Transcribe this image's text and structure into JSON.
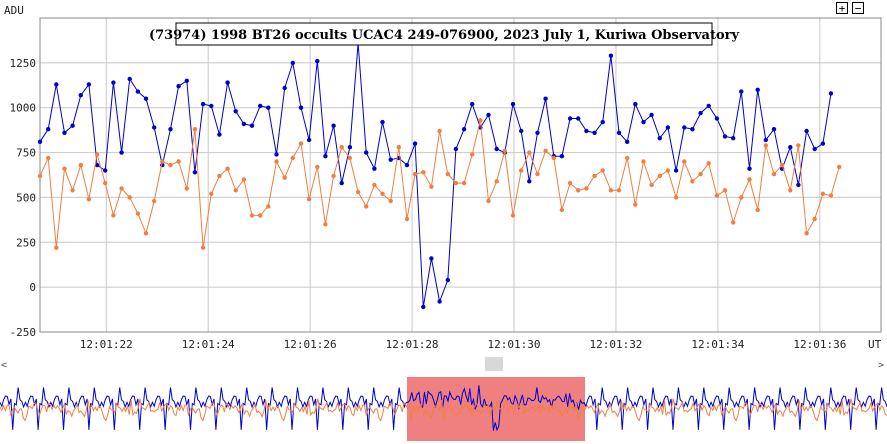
{
  "chart_data": {
    "type": "line",
    "title": "(73974) 1998 BT26 occults UCAC4 249-076900, 2023 July 1, Kuriwa Observatory",
    "ylabel": "ADU",
    "xlabel": "UT",
    "ylim": [
      -250,
      1500
    ],
    "xlim": [
      "12:01:20.7",
      "12:01:37.2"
    ],
    "x_start_sec": 80.7,
    "x_step_sec": 0.16,
    "y_ticks": [
      -250,
      0,
      250,
      500,
      750,
      1000,
      1250
    ],
    "x_ticks": [
      "12:01:22",
      "12:01:24",
      "12:01:26",
      "12:01:28",
      "12:01:30",
      "12:01:32",
      "12:01:34",
      "12:01:36"
    ],
    "grid": true,
    "series": [
      {
        "name": "",
        "color": "#0000cc",
        "values": [
          810,
          880,
          1130,
          860,
          900,
          1070,
          1130,
          680,
          650,
          1140,
          750,
          1160,
          1090,
          1050,
          890,
          680,
          880,
          1120,
          1150,
          640,
          1020,
          1010,
          850,
          1140,
          980,
          910,
          900,
          1010,
          1000,
          740,
          1110,
          1250,
          1000,
          820,
          1260,
          730,
          900,
          580,
          780,
          1360,
          750,
          660,
          920,
          710,
          720,
          680,
          800,
          -110,
          160,
          -80,
          40,
          770,
          880,
          1020,
          890,
          960,
          770,
          750,
          1020,
          870,
          590,
          860,
          1050,
          730,
          730,
          940,
          940,
          870,
          860,
          920,
          1290,
          860,
          810,
          1020,
          920,
          960,
          830,
          890,
          650,
          890,
          880,
          970,
          1010,
          940,
          840,
          830,
          1090,
          660,
          1100,
          820,
          880,
          660,
          780,
          570,
          870,
          770,
          800,
          1080
        ],
        "markers": true
      },
      {
        "name": "",
        "color": "#f07f40",
        "values": [
          620,
          720,
          220,
          660,
          540,
          680,
          490,
          740,
          580,
          400,
          550,
          500,
          410,
          300,
          480,
          700,
          680,
          700,
          550,
          880,
          220,
          520,
          620,
          660,
          540,
          600,
          400,
          400,
          450,
          700,
          610,
          720,
          800,
          490,
          670,
          350,
          620,
          780,
          720,
          530,
          450,
          570,
          520,
          480,
          780,
          380,
          630,
          640,
          560,
          870,
          630,
          580,
          580,
          740,
          930,
          480,
          590,
          760,
          400,
          650,
          750,
          630,
          760,
          720,
          430,
          580,
          540,
          550,
          620,
          650,
          540,
          540,
          720,
          460,
          700,
          570,
          620,
          650,
          500,
          700,
          590,
          630,
          690,
          510,
          540,
          360,
          500,
          600,
          430,
          790,
          630,
          680,
          540,
          790,
          300,
          380,
          520,
          510,
          670
        ],
        "markers": true
      }
    ]
  },
  "controls": {
    "zoom_in": "+",
    "zoom_out": "−"
  }
}
